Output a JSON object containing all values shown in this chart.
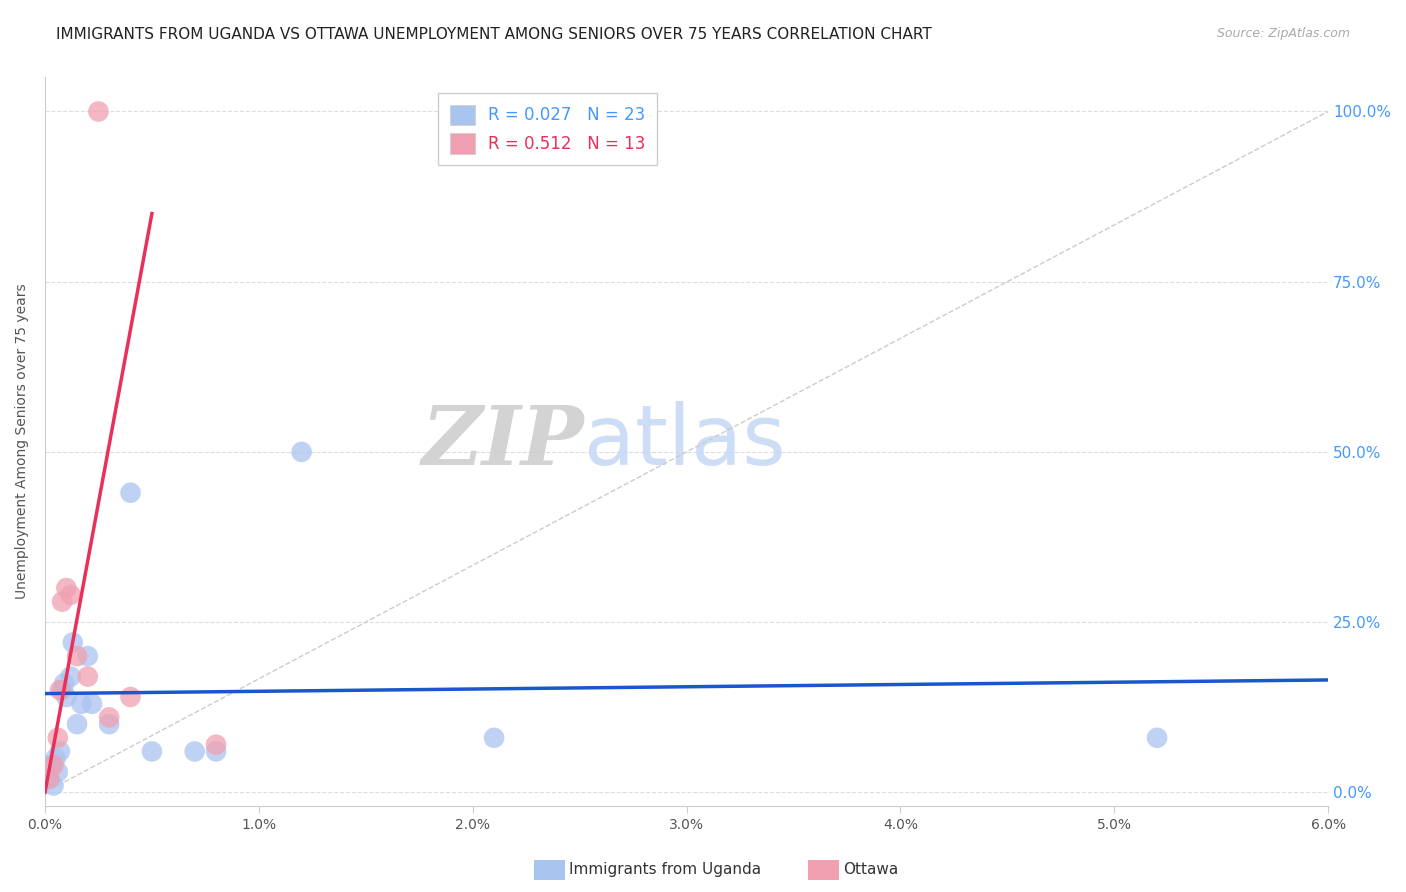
{
  "title": "IMMIGRANTS FROM UGANDA VS OTTAWA UNEMPLOYMENT AMONG SENIORS OVER 75 YEARS CORRELATION CHART",
  "source": "Source: ZipAtlas.com",
  "ylabel": "Unemployment Among Seniors over 75 years",
  "ylabel_right_ticks": [
    "0.0%",
    "25.0%",
    "50.0%",
    "75.0%",
    "100.0%"
  ],
  "ylabel_right_vals": [
    0.0,
    0.25,
    0.5,
    0.75,
    1.0
  ],
  "legend_blue_R": "0.027",
  "legend_blue_N": "23",
  "legend_pink_R": "0.512",
  "legend_pink_N": "13",
  "legend_label_blue": "Immigrants from Uganda",
  "legend_label_pink": "Ottawa",
  "blue_scatter_x": [
    0.0002,
    0.0003,
    0.0004,
    0.0005,
    0.0006,
    0.0007,
    0.0008,
    0.0009,
    0.001,
    0.0012,
    0.0013,
    0.0015,
    0.0017,
    0.002,
    0.0022,
    0.003,
    0.004,
    0.005,
    0.007,
    0.008,
    0.021,
    0.052,
    0.012
  ],
  "blue_scatter_y": [
    0.02,
    0.04,
    0.01,
    0.05,
    0.03,
    0.06,
    0.15,
    0.16,
    0.14,
    0.17,
    0.22,
    0.1,
    0.13,
    0.2,
    0.13,
    0.1,
    0.44,
    0.06,
    0.06,
    0.06,
    0.08,
    0.08,
    0.5
  ],
  "pink_scatter_x": [
    0.0002,
    0.0004,
    0.0006,
    0.0007,
    0.0008,
    0.001,
    0.0012,
    0.0015,
    0.002,
    0.003,
    0.004,
    0.008,
    0.0025
  ],
  "pink_scatter_y": [
    0.02,
    0.04,
    0.08,
    0.15,
    0.28,
    0.3,
    0.29,
    0.2,
    0.17,
    0.11,
    0.14,
    0.07,
    1.0
  ],
  "blue_line_x": [
    0.0,
    0.06
  ],
  "blue_line_y": [
    0.145,
    0.165
  ],
  "pink_line_x": [
    0.0,
    0.005
  ],
  "pink_line_y": [
    0.0,
    0.85
  ],
  "diag_line_x": [
    0.0,
    0.06
  ],
  "diag_line_y": [
    0.0,
    1.0
  ],
  "xlim": [
    0.0,
    0.06
  ],
  "ylim": [
    -0.02,
    1.05
  ],
  "watermark_zip": "ZIP",
  "watermark_atlas": "atlas",
  "blue_color": "#aac4f0",
  "pink_color": "#f0a0b0",
  "blue_line_color": "#1a56cc",
  "pink_line_color": "#e8305a",
  "diag_line_color": "#cccccc",
  "right_axis_color": "#4499ff",
  "title_fontsize": 11,
  "source_fontsize": 9
}
